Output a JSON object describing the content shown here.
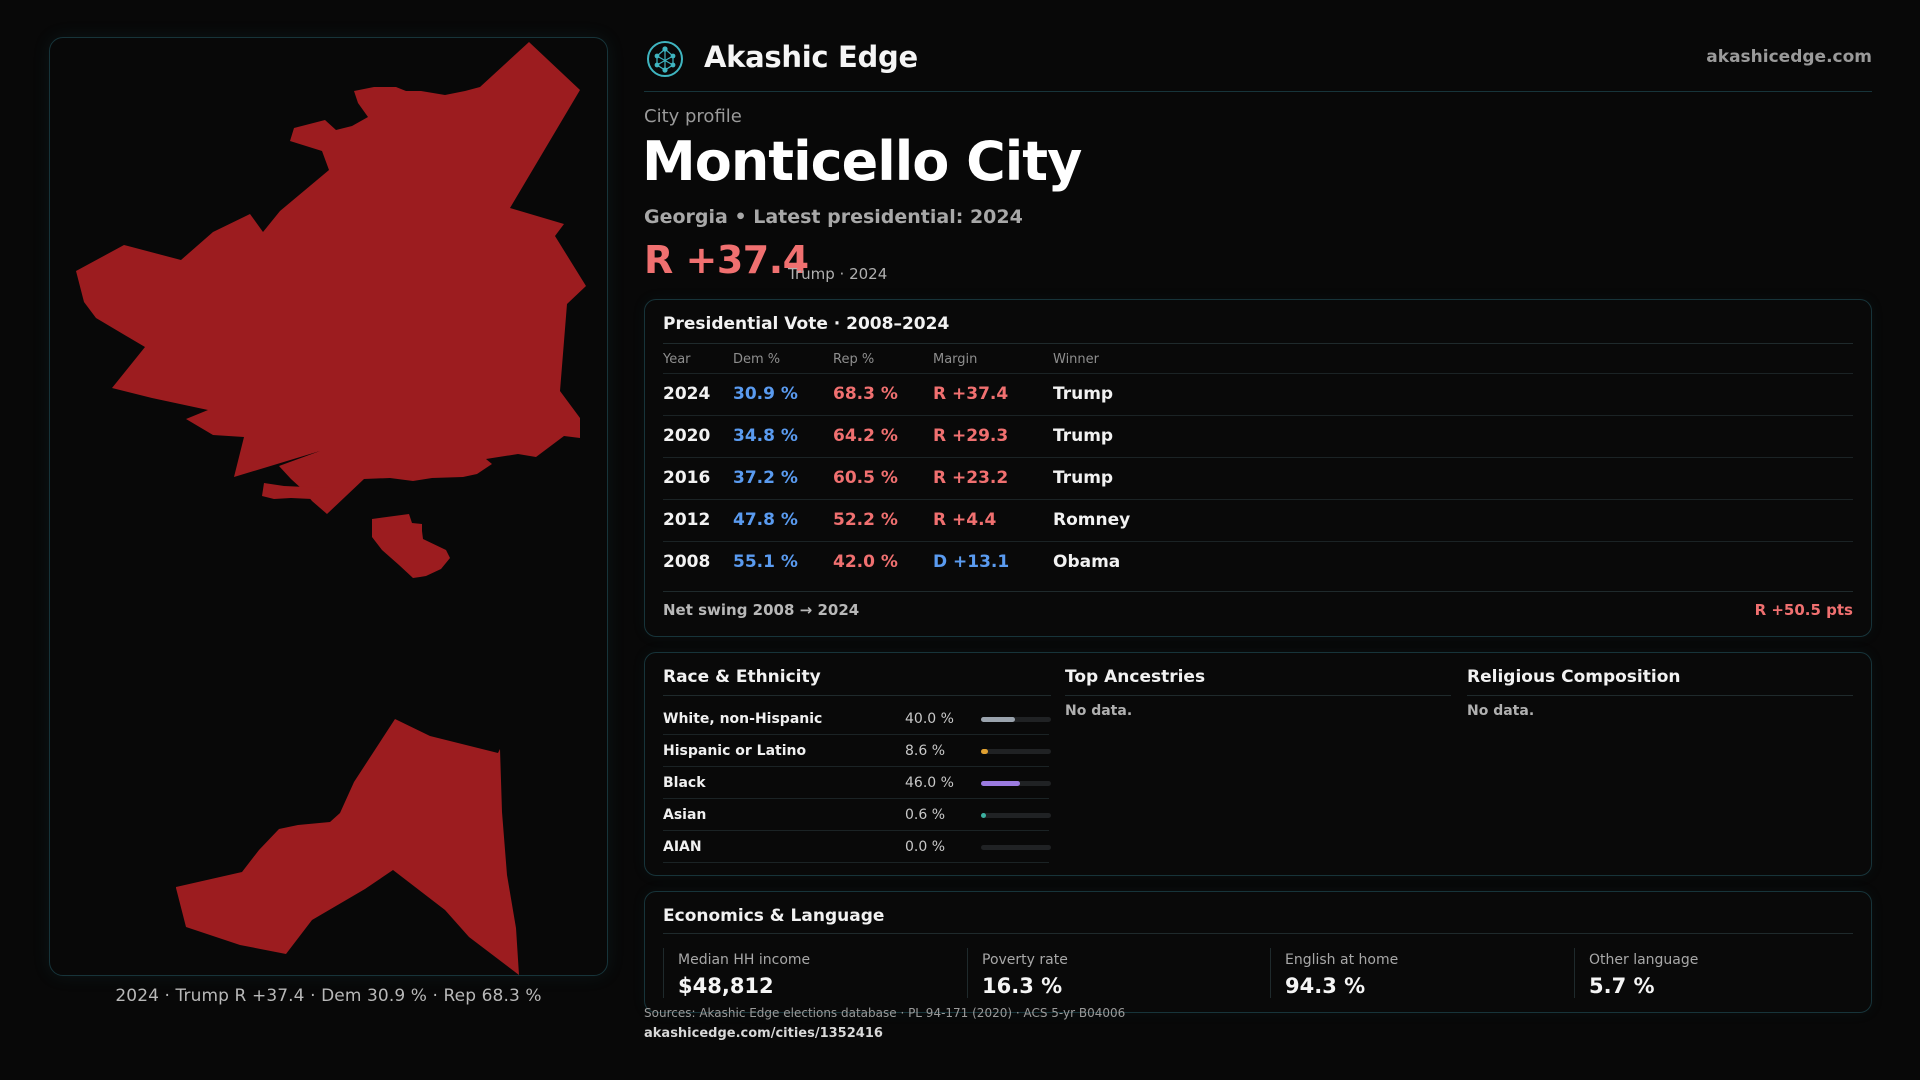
{
  "header": {
    "brand": "Akashic Edge",
    "site_link": "akashicedge.com",
    "logo_icon": "tree-of-life-icon"
  },
  "city": {
    "kicker": "City profile",
    "name": "Monticello City",
    "subtitle": "Georgia • Latest presidential: 2024",
    "margin": "R +37.4",
    "margin_note": "Trump · 2024"
  },
  "map": {
    "fill_color": "#9c1c1f",
    "caption": "2024 · Trump R +37.4 · Dem 30.9 % · Rep 68.3 %"
  },
  "votes": {
    "title": "Presidential Vote · 2008–2024",
    "columns": [
      "Year",
      "Dem %",
      "Rep %",
      "Margin",
      "Winner"
    ],
    "rows": [
      {
        "year": "2024",
        "dem": "30.9 %",
        "rep": "68.3 %",
        "margin": "R +37.4",
        "winner": "Trump"
      },
      {
        "year": "2020",
        "dem": "34.8 %",
        "rep": "64.2 %",
        "margin": "R +29.3",
        "winner": "Trump"
      },
      {
        "year": "2016",
        "dem": "37.2 %",
        "rep": "60.5 %",
        "margin": "R +23.2",
        "winner": "Trump"
      },
      {
        "year": "2012",
        "dem": "47.8 %",
        "rep": "52.2 %",
        "margin": "R +4.4",
        "winner": "Romney"
      },
      {
        "year": "2008",
        "dem": "55.1 %",
        "rep": "42.0 %",
        "margin": "D +13.1",
        "winner": "Obama"
      }
    ],
    "swing_label": "Net swing 2008 → 2024",
    "swing_value": "R +50.5 pts",
    "colors": {
      "dem": "#5a9bf0",
      "rep": "#f07070"
    }
  },
  "race": {
    "title": "Race & Ethnicity",
    "rows": [
      {
        "label": "White, non-Hispanic",
        "pct": "40.0 %",
        "value": 40.0,
        "color": "#9aa3ad"
      },
      {
        "label": "Hispanic or Latino",
        "pct": "8.6 %",
        "value": 8.6,
        "color": "#e0a030"
      },
      {
        "label": "Black",
        "pct": "46.0 %",
        "value": 46.0,
        "color": "#9b7be0"
      },
      {
        "label": "Asian",
        "pct": "0.6 %",
        "value": 0.6,
        "color": "#3cb0a0"
      },
      {
        "label": "AIAN",
        "pct": "0.0 %",
        "value": 0.0,
        "color": "#8a8a8a"
      }
    ]
  },
  "ancestries": {
    "title": "Top Ancestries",
    "empty": "No data."
  },
  "religion": {
    "title": "Religious Composition",
    "empty": "No data."
  },
  "economics": {
    "title": "Economics & Language",
    "stats": [
      {
        "label": "Median HH income",
        "value": "$48,812"
      },
      {
        "label": "Poverty rate",
        "value": "16.3 %"
      },
      {
        "label": "English at home",
        "value": "94.3 %"
      },
      {
        "label": "Other language",
        "value": "5.7 %"
      }
    ]
  },
  "footer": {
    "sources": "Sources: Akashic Edge elections database · PL 94-171 (2020) · ACS 5-yr B04006",
    "permalink": "akashicedge.com/cities/1352416"
  }
}
